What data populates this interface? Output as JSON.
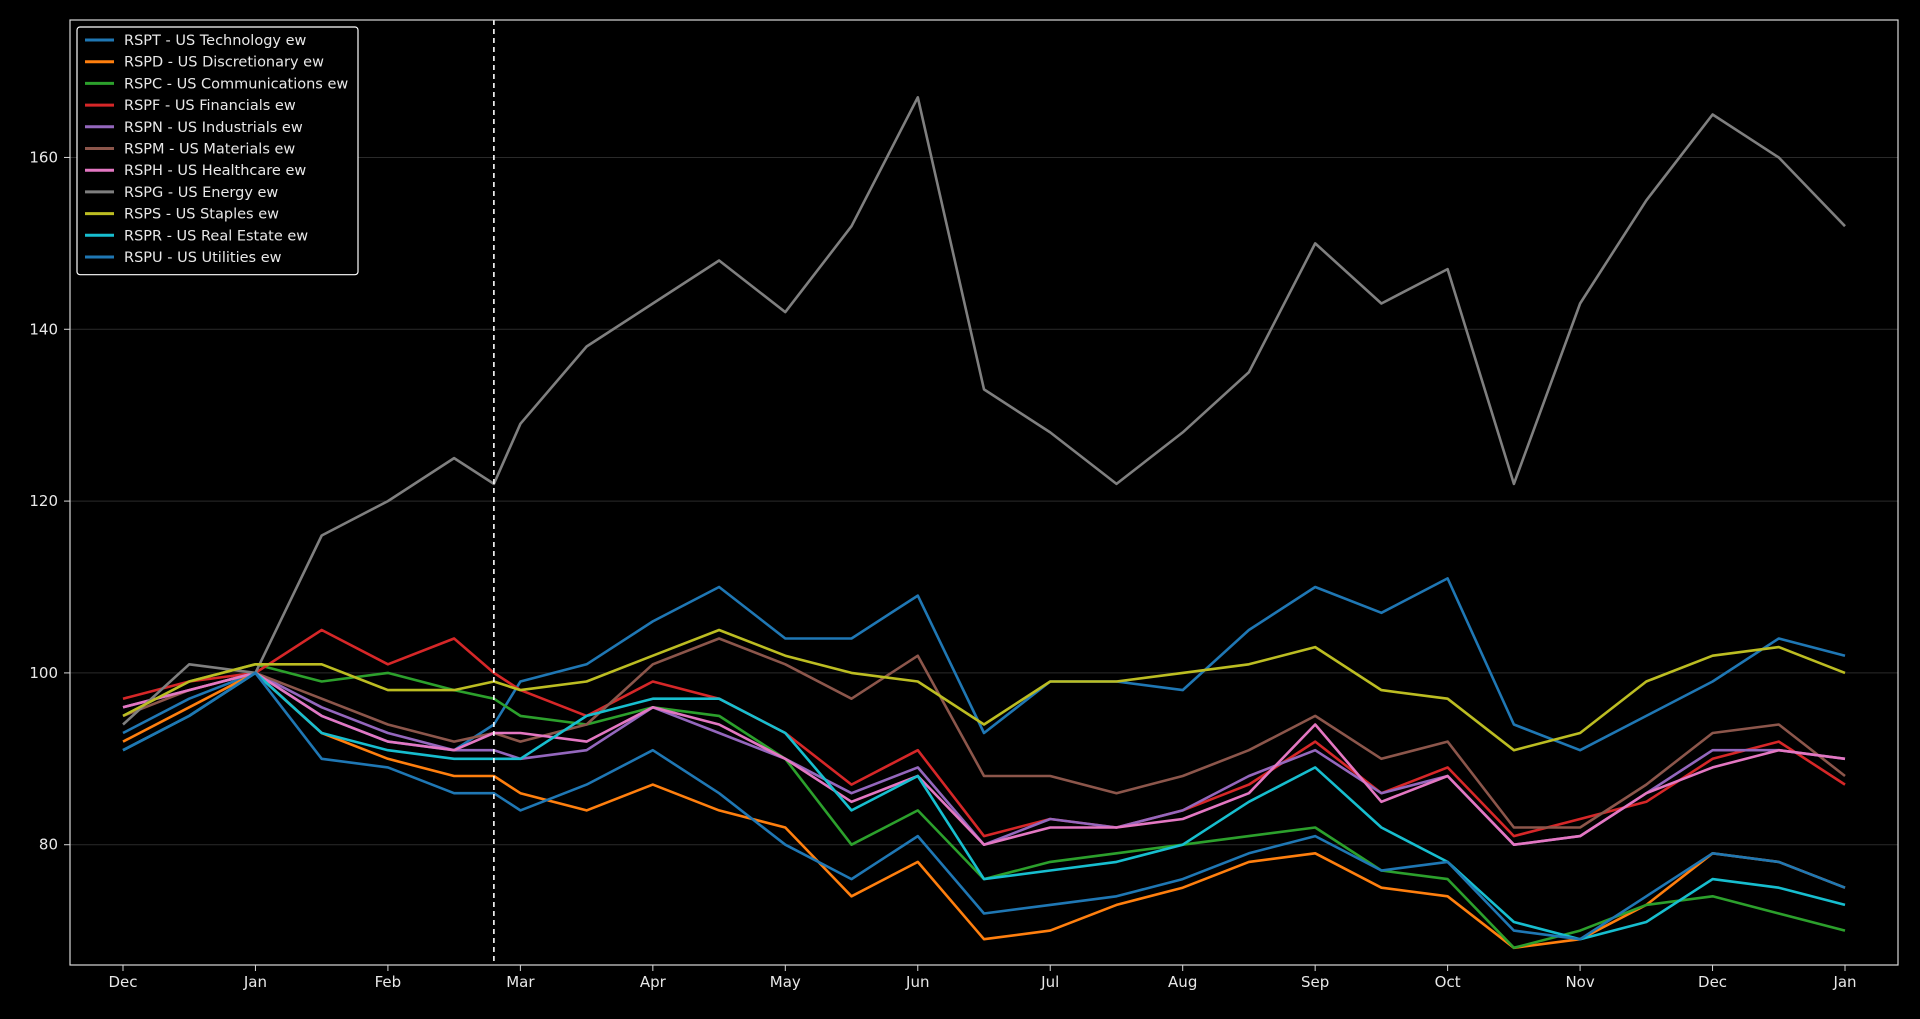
{
  "colors": {
    "background": "#000000",
    "axis": "#d9d9d9",
    "grid": "#2a2a2a",
    "annotation_line": "#ffffff"
  },
  "chart_data": {
    "type": "line",
    "xlabel": "",
    "ylabel": "",
    "grid": "horizontal",
    "legend_position": "top-left",
    "x_ticks": [
      "Dec",
      "Jan",
      "Feb",
      "Mar",
      "Apr",
      "May",
      "Jun",
      "Jul",
      "Aug",
      "Sep",
      "Oct",
      "Nov",
      "Dec",
      "Jan"
    ],
    "y_ticks": [
      80,
      100,
      120,
      140,
      160
    ],
    "xlim_months": [
      -0.4,
      13.4
    ],
    "ylim": [
      66,
      176
    ],
    "annotation_x_month": 2.8,
    "x_months": [
      0,
      0.5,
      1,
      1.5,
      2,
      2.5,
      2.8,
      3,
      3.5,
      4,
      4.5,
      5,
      5.5,
      6,
      6.5,
      7,
      7.5,
      8,
      8.5,
      9,
      9.5,
      10,
      10.5,
      11,
      11.5,
      12,
      12.5,
      13
    ],
    "series": [
      {
        "name": "RSPT - US Technology ew",
        "color": "#1f77b4",
        "values": [
          93,
          97,
          100,
          95,
          92,
          91,
          94,
          99,
          101,
          106,
          110,
          104,
          104,
          109,
          93,
          99,
          99,
          98,
          105,
          110,
          107,
          111,
          94,
          91,
          95,
          99,
          104,
          102
        ]
      },
      {
        "name": "RSPD - US Discretionary ew",
        "color": "#ff7f0e",
        "values": [
          92,
          96,
          100,
          93,
          90,
          88,
          88,
          86,
          84,
          87,
          84,
          82,
          74,
          78,
          69,
          70,
          73,
          75,
          78,
          79,
          75,
          74,
          68,
          69,
          73,
          79,
          78,
          75
        ]
      },
      {
        "name": "RSPC - US Communications ew",
        "color": "#2ca02c",
        "values": [
          95,
          99,
          101,
          99,
          100,
          98,
          97,
          95,
          94,
          96,
          95,
          90,
          80,
          84,
          76,
          78,
          79,
          80,
          81,
          82,
          77,
          76,
          68,
          70,
          73,
          74,
          72,
          70
        ]
      },
      {
        "name": "RSPF - US Financials ew",
        "color": "#d62728",
        "values": [
          97,
          99,
          100,
          105,
          101,
          104,
          100,
          98,
          95,
          99,
          97,
          93,
          87,
          91,
          81,
          83,
          82,
          84,
          87,
          92,
          86,
          89,
          81,
          83,
          85,
          90,
          92,
          87
        ]
      },
      {
        "name": "RSPN - US Industrials ew",
        "color": "#9467bd",
        "values": [
          96,
          98,
          100,
          96,
          93,
          91,
          91,
          90,
          91,
          96,
          93,
          90,
          86,
          89,
          80,
          83,
          82,
          84,
          88,
          91,
          86,
          88,
          80,
          81,
          86,
          91,
          91,
          90
        ]
      },
      {
        "name": "RSPM - US Materials ew",
        "color": "#8c564b",
        "values": [
          95,
          98,
          100,
          97,
          94,
          92,
          93,
          92,
          94,
          101,
          104,
          101,
          97,
          102,
          88,
          88,
          86,
          88,
          91,
          95,
          90,
          92,
          82,
          82,
          87,
          93,
          94,
          88
        ]
      },
      {
        "name": "RSPH - US Healthcare ew",
        "color": "#e377c2",
        "values": [
          96,
          98,
          100,
          95,
          92,
          91,
          93,
          93,
          92,
          96,
          94,
          90,
          85,
          88,
          80,
          82,
          82,
          83,
          86,
          94,
          85,
          88,
          80,
          81,
          86,
          89,
          91,
          90
        ]
      },
      {
        "name": "RSPG - US Energy ew",
        "color": "#7f7f7f",
        "values": [
          94,
          101,
          100,
          116,
          120,
          125,
          122,
          129,
          138,
          143,
          148,
          142,
          152,
          167,
          133,
          128,
          122,
          128,
          135,
          150,
          143,
          147,
          122,
          143,
          155,
          165,
          160,
          152
        ]
      },
      {
        "name": "RSPS - US Staples ew",
        "color": "#bcbd22",
        "values": [
          95,
          99,
          101,
          101,
          98,
          98,
          99,
          98,
          99,
          102,
          105,
          102,
          100,
          99,
          94,
          99,
          99,
          100,
          101,
          103,
          98,
          97,
          91,
          93,
          99,
          102,
          103,
          100
        ]
      },
      {
        "name": "RSPR - US Real Estate ew",
        "color": "#17becf",
        "values": [
          91,
          95,
          100,
          93,
          91,
          90,
          90,
          90,
          95,
          97,
          97,
          93,
          84,
          88,
          76,
          77,
          78,
          80,
          85,
          89,
          82,
          78,
          71,
          69,
          71,
          76,
          75,
          73
        ]
      },
      {
        "name": "RSPU - US Utilities ew",
        "color": "#1f77b4",
        "values": [
          91,
          95,
          100,
          90,
          89,
          86,
          86,
          84,
          87,
          91,
          86,
          80,
          76,
          81,
          72,
          73,
          74,
          76,
          79,
          81,
          77,
          78,
          70,
          69,
          74,
          79,
          78,
          75
        ]
      }
    ]
  }
}
